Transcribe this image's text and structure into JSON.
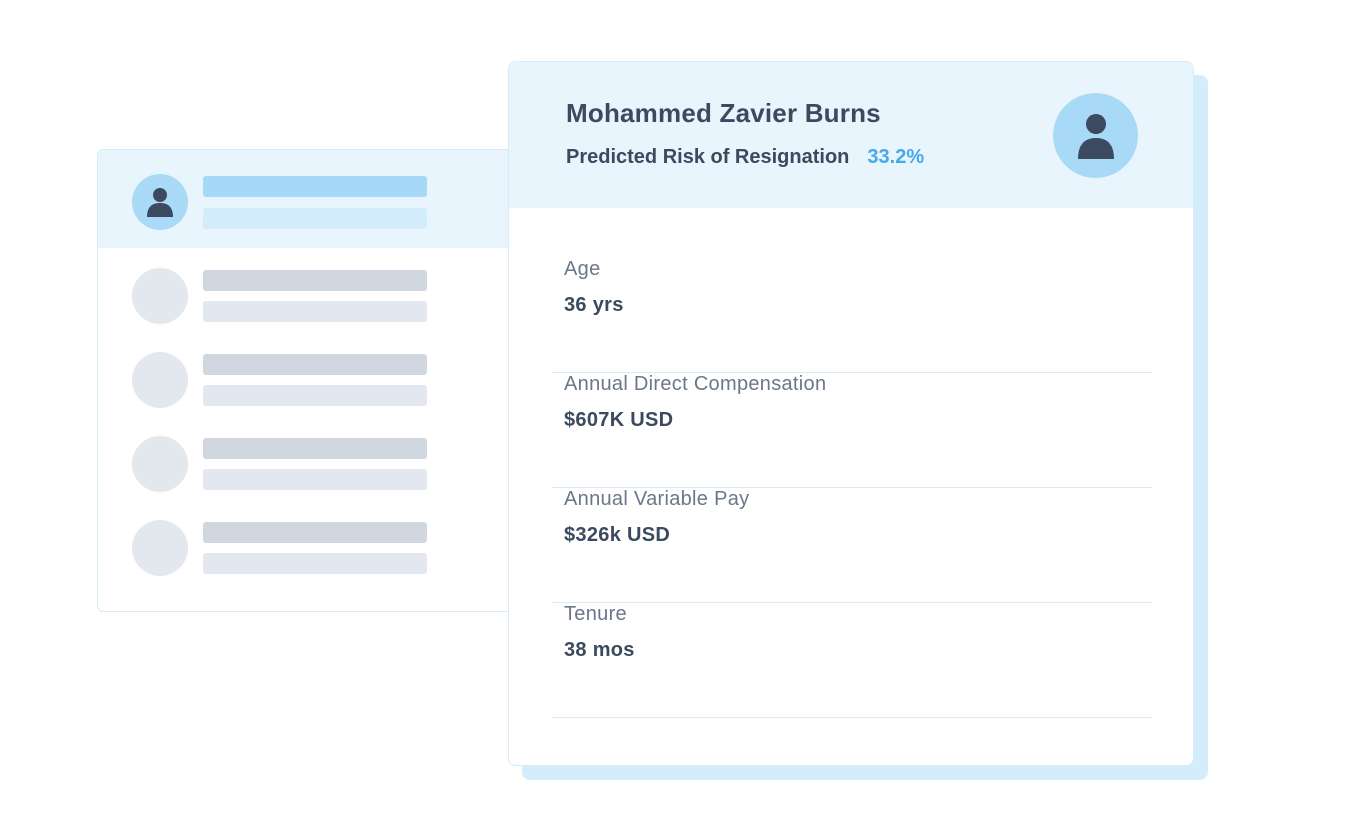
{
  "employee": {
    "name": "Mohammed Zavier Burns",
    "risk_label": "Predicted Risk of Resignation",
    "risk_value": "33.2%",
    "avatar_icon": "person-icon"
  },
  "fields": [
    {
      "label": "Age",
      "value": "36 yrs"
    },
    {
      "label": "Annual Direct Compensation",
      "value": "$607K USD"
    },
    {
      "label": "Annual Variable Pay",
      "value": "$326k USD"
    },
    {
      "label": "Tenure",
      "value": "38 mos"
    }
  ],
  "colors": {
    "accent": "#45a9ea",
    "header_bg": "#e8f5fd",
    "text_dark": "#3b4a5e",
    "text_muted": "#6b7788",
    "avatar_bg": "#a8daf8"
  }
}
